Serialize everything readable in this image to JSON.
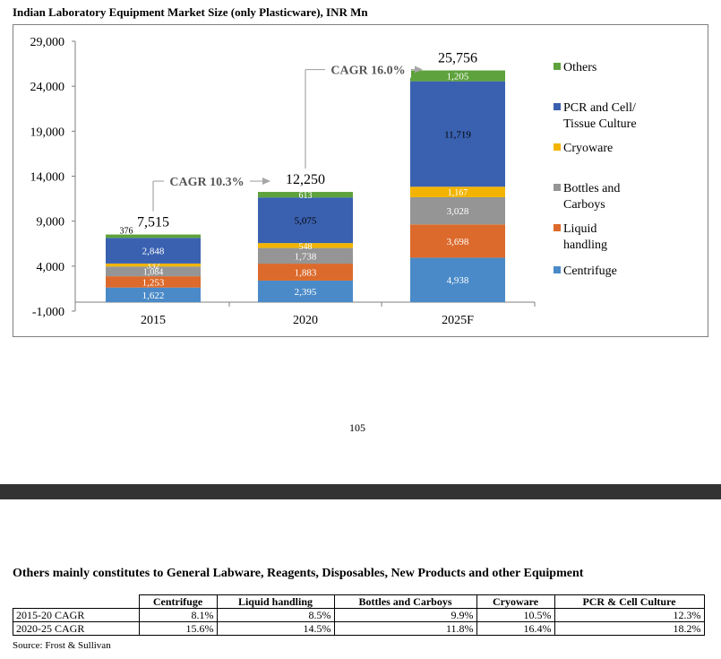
{
  "header": {
    "title": "Indian Laboratory Equipment Market Size (only Plasticware), INR Mn"
  },
  "chart_data": {
    "type": "bar",
    "stacked": true,
    "title": "Indian Laboratory Equipment Market Size (only Plasticware), INR Mn",
    "categories": [
      "2015",
      "2020",
      "2025F"
    ],
    "series": [
      {
        "name": "Centrifuge",
        "color": "#4a8ac8",
        "values": [
          1622,
          2395,
          4938
        ],
        "labels": [
          "1,622",
          "2,395",
          "4,938"
        ]
      },
      {
        "name": "Liquid handling",
        "color": "#dc6a2c",
        "values": [
          1253,
          1883,
          3698
        ],
        "labels": [
          "1,253",
          "1,883",
          "3,698"
        ]
      },
      {
        "name": "Bottles and Carboys",
        "color": "#959595",
        "values": [
          1084,
          1738,
          3028
        ],
        "labels": [
          "1,084",
          "1,738",
          "3,028"
        ]
      },
      {
        "name": "Cryoware",
        "color": "#f2b400",
        "values": [
          332,
          548,
          1167
        ],
        "labels": [
          "332",
          "548",
          "1,167"
        ]
      },
      {
        "name": "PCR and Cell/ Tissue Culture",
        "color": "#3a61b0",
        "values": [
          2848,
          5075,
          11719
        ],
        "labels": [
          "2,848",
          "5,075",
          "11,719"
        ]
      },
      {
        "name": "Others",
        "color": "#5da23c",
        "values": [
          376,
          613,
          1205
        ],
        "labels": [
          "376",
          "613",
          "1,205"
        ]
      }
    ],
    "totals": [
      "7,515",
      "12,250",
      "25,756"
    ],
    "ylim": [
      -1000,
      29000
    ],
    "yticks": [
      -1000,
      4000,
      9000,
      14000,
      19000,
      24000,
      29000
    ],
    "ytick_labels": [
      "-1,000",
      "4,000",
      "9,000",
      "14,000",
      "19,000",
      "24,000",
      "29,000"
    ],
    "legend_position": "right",
    "legend_order": [
      "Others",
      "PCR and Cell/ Tissue Culture",
      "Cryoware",
      "Bottles and Carboys",
      "Liquid handling",
      "Centrifuge"
    ],
    "annotations": [
      {
        "text": "CAGR 10.3%",
        "from": "2015",
        "to": "2020"
      },
      {
        "text": "CAGR 16.0%",
        "from": "2020",
        "to": "2025F"
      }
    ]
  },
  "page_number": "105",
  "note": "Others mainly constitutes to General Labware, Reagents, Disposables, New Products and other Equipment",
  "cagr_table": {
    "headers": [
      "Centrifuge",
      "Liquid handling",
      "Bottles and Carboys",
      "Cryoware",
      "PCR & Cell Culture"
    ],
    "rows": [
      {
        "label": "2015-20 CAGR",
        "values": [
          "8.1%",
          "8.5%",
          "9.9%",
          "10.5%",
          "12.3%"
        ]
      },
      {
        "label": "2020-25 CAGR",
        "values": [
          "15.6%",
          "14.5%",
          "11.8%",
          "16.4%",
          "18.2%"
        ]
      }
    ]
  },
  "source": "Source: Frost & Sullivan"
}
